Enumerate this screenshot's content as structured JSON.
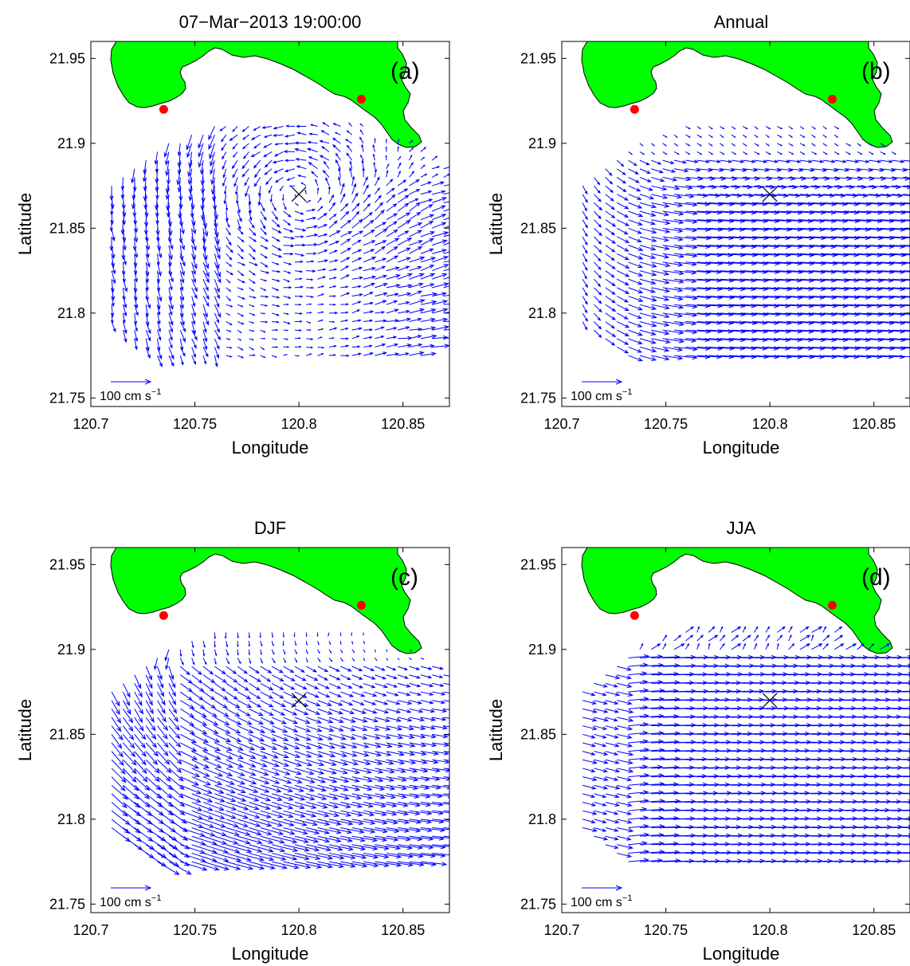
{
  "colors": {
    "land": "#00ff00",
    "arrow": "#0000ff",
    "station": "#ff0000",
    "center": "#000000"
  },
  "figure": {
    "xlabel": "Longitude",
    "ylabel": "Latitude",
    "ref_arrow_label": "100 cm s",
    "ref_arrow_exponent": "−1"
  },
  "chart_data": [
    {
      "type": "quiver",
      "title": "07−Mar−2013 19:00:00",
      "panel_label": "(a)",
      "xlim": [
        120.7,
        120.875
      ],
      "ylim": [
        21.745,
        21.96
      ],
      "xticks": [
        "120.7",
        "120.75",
        "120.8",
        "120.85"
      ],
      "xtick_values": [
        120.7,
        120.75,
        120.8,
        120.85
      ],
      "yticks": [
        "21.75",
        "21.8",
        "21.85",
        "21.9",
        "21.95"
      ],
      "ytick_values": [
        21.75,
        21.8,
        21.85,
        21.9,
        21.95
      ],
      "center_marker": [
        120.8,
        21.87
      ],
      "stations": [
        [
          120.735,
          21.92
        ],
        [
          120.83,
          21.926
        ]
      ],
      "field": "cyclonic eddy centered at marker",
      "reference_speed_cm_s": 100
    },
    {
      "type": "quiver",
      "title": "Annual",
      "panel_label": "(b)",
      "xlim": [
        120.7,
        120.875
      ],
      "ylim": [
        21.745,
        21.96
      ],
      "xticks": [
        "120.7",
        "120.75",
        "120.8",
        "120.85"
      ],
      "xtick_values": [
        120.7,
        120.75,
        120.8,
        120.85
      ],
      "yticks": [
        "21.75",
        "21.8",
        "21.85",
        "21.9",
        "21.95"
      ],
      "ytick_values": [
        21.75,
        21.8,
        21.85,
        21.9,
        21.95
      ],
      "center_marker": [
        120.8,
        21.87
      ],
      "stations": [
        [
          120.735,
          21.92
        ],
        [
          120.83,
          21.926
        ]
      ],
      "field": "eastward flow, weak near coast",
      "reference_speed_cm_s": 100
    },
    {
      "type": "quiver",
      "title": "DJF",
      "panel_label": "(c)",
      "xlim": [
        120.7,
        120.875
      ],
      "ylim": [
        21.745,
        21.96
      ],
      "xticks": [
        "120.7",
        "120.75",
        "120.8",
        "120.85"
      ],
      "xtick_values": [
        120.7,
        120.75,
        120.8,
        120.85
      ],
      "yticks": [
        "21.75",
        "21.8",
        "21.85",
        "21.9",
        "21.95"
      ],
      "ytick_values": [
        21.75,
        21.8,
        21.85,
        21.9,
        21.95
      ],
      "center_marker": [
        120.8,
        21.87
      ],
      "stations": [
        [
          120.735,
          21.92
        ],
        [
          120.83,
          21.926
        ]
      ],
      "field": "weak cyclonic circulation",
      "reference_speed_cm_s": 100
    },
    {
      "type": "quiver",
      "title": "JJA",
      "panel_label": "(d)",
      "xlim": [
        120.7,
        120.875
      ],
      "ylim": [
        21.745,
        21.96
      ],
      "xticks": [
        "120.7",
        "120.75",
        "120.8",
        "120.85"
      ],
      "xtick_values": [
        120.7,
        120.75,
        120.8,
        120.85
      ],
      "yticks": [
        "21.75",
        "21.8",
        "21.85",
        "21.9",
        "21.95"
      ],
      "ytick_values": [
        21.75,
        21.8,
        21.85,
        21.9,
        21.95
      ],
      "center_marker": [
        120.8,
        21.87
      ],
      "stations": [
        [
          120.735,
          21.92
        ],
        [
          120.83,
          21.926
        ]
      ],
      "field": "strong eastward flow",
      "reference_speed_cm_s": 100
    }
  ]
}
